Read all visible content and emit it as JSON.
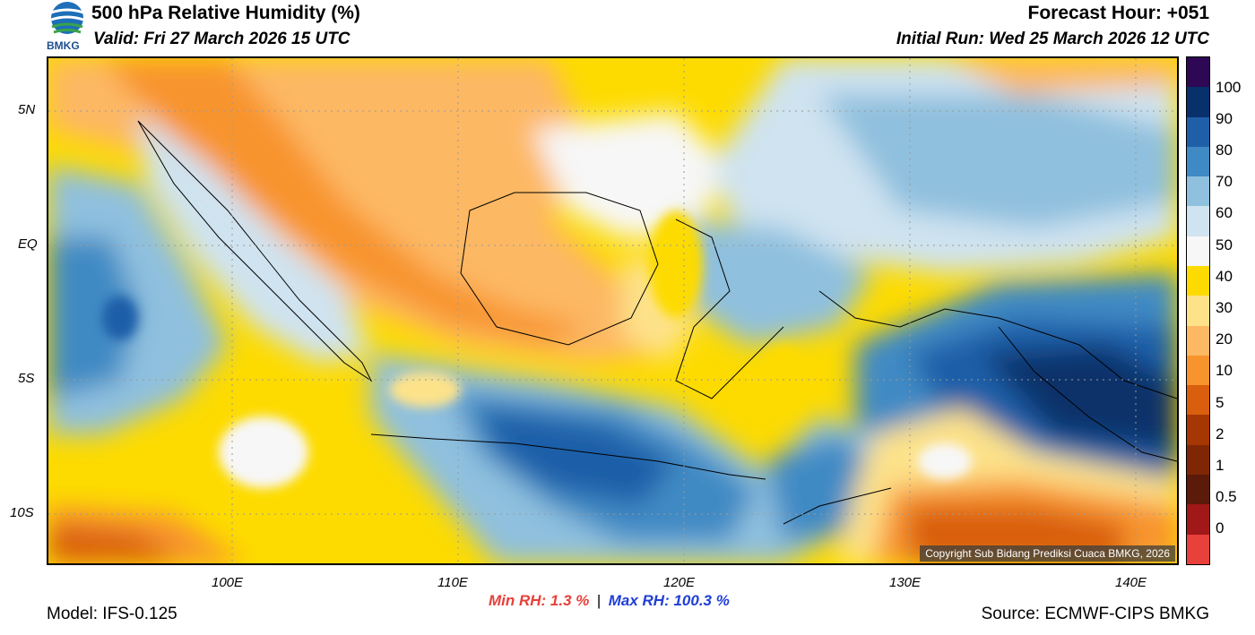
{
  "header": {
    "title": "500 hPa Relative Humidity (%)",
    "valid": "Valid: Fri 27 March 2026 15 UTC",
    "forecast_hour": "Forecast Hour: +051",
    "initial_run": "Initial Run: Wed 25 March 2026 12 UTC",
    "logo_text": "BMKG"
  },
  "map": {
    "lat_labels": [
      "5N",
      "EQ",
      "5S",
      "10S"
    ],
    "lon_labels": [
      "100E",
      "110E",
      "120E",
      "130E",
      "140E"
    ],
    "copyright": "Copyright Sub Bidang Prediksi Cuaca BMKG, 2026"
  },
  "colorbar": {
    "labels": [
      "100",
      "90",
      "80",
      "70",
      "60",
      "50",
      "40",
      "30",
      "20",
      "10",
      "5",
      "2",
      "1",
      "0.5",
      "0"
    ],
    "colors": [
      "#2e0854",
      "#08306b",
      "#1f5fa8",
      "#3f8ac4",
      "#8fc0de",
      "#cfe3f0",
      "#f7f7f7",
      "#fddb00",
      "#fde28a",
      "#fdb863",
      "#f8942e",
      "#d95f0e",
      "#a63603",
      "#7f2704",
      "#5b1a0a",
      "#a01818",
      "#e8403a"
    ]
  },
  "footer": {
    "model": "Model: IFS-0.125",
    "min_rh": "Min RH:   1.3 %",
    "separator": "|",
    "max_rh": "Max RH: 100.3 %",
    "source": "Source: ECMWF-CIPS BMKG"
  }
}
